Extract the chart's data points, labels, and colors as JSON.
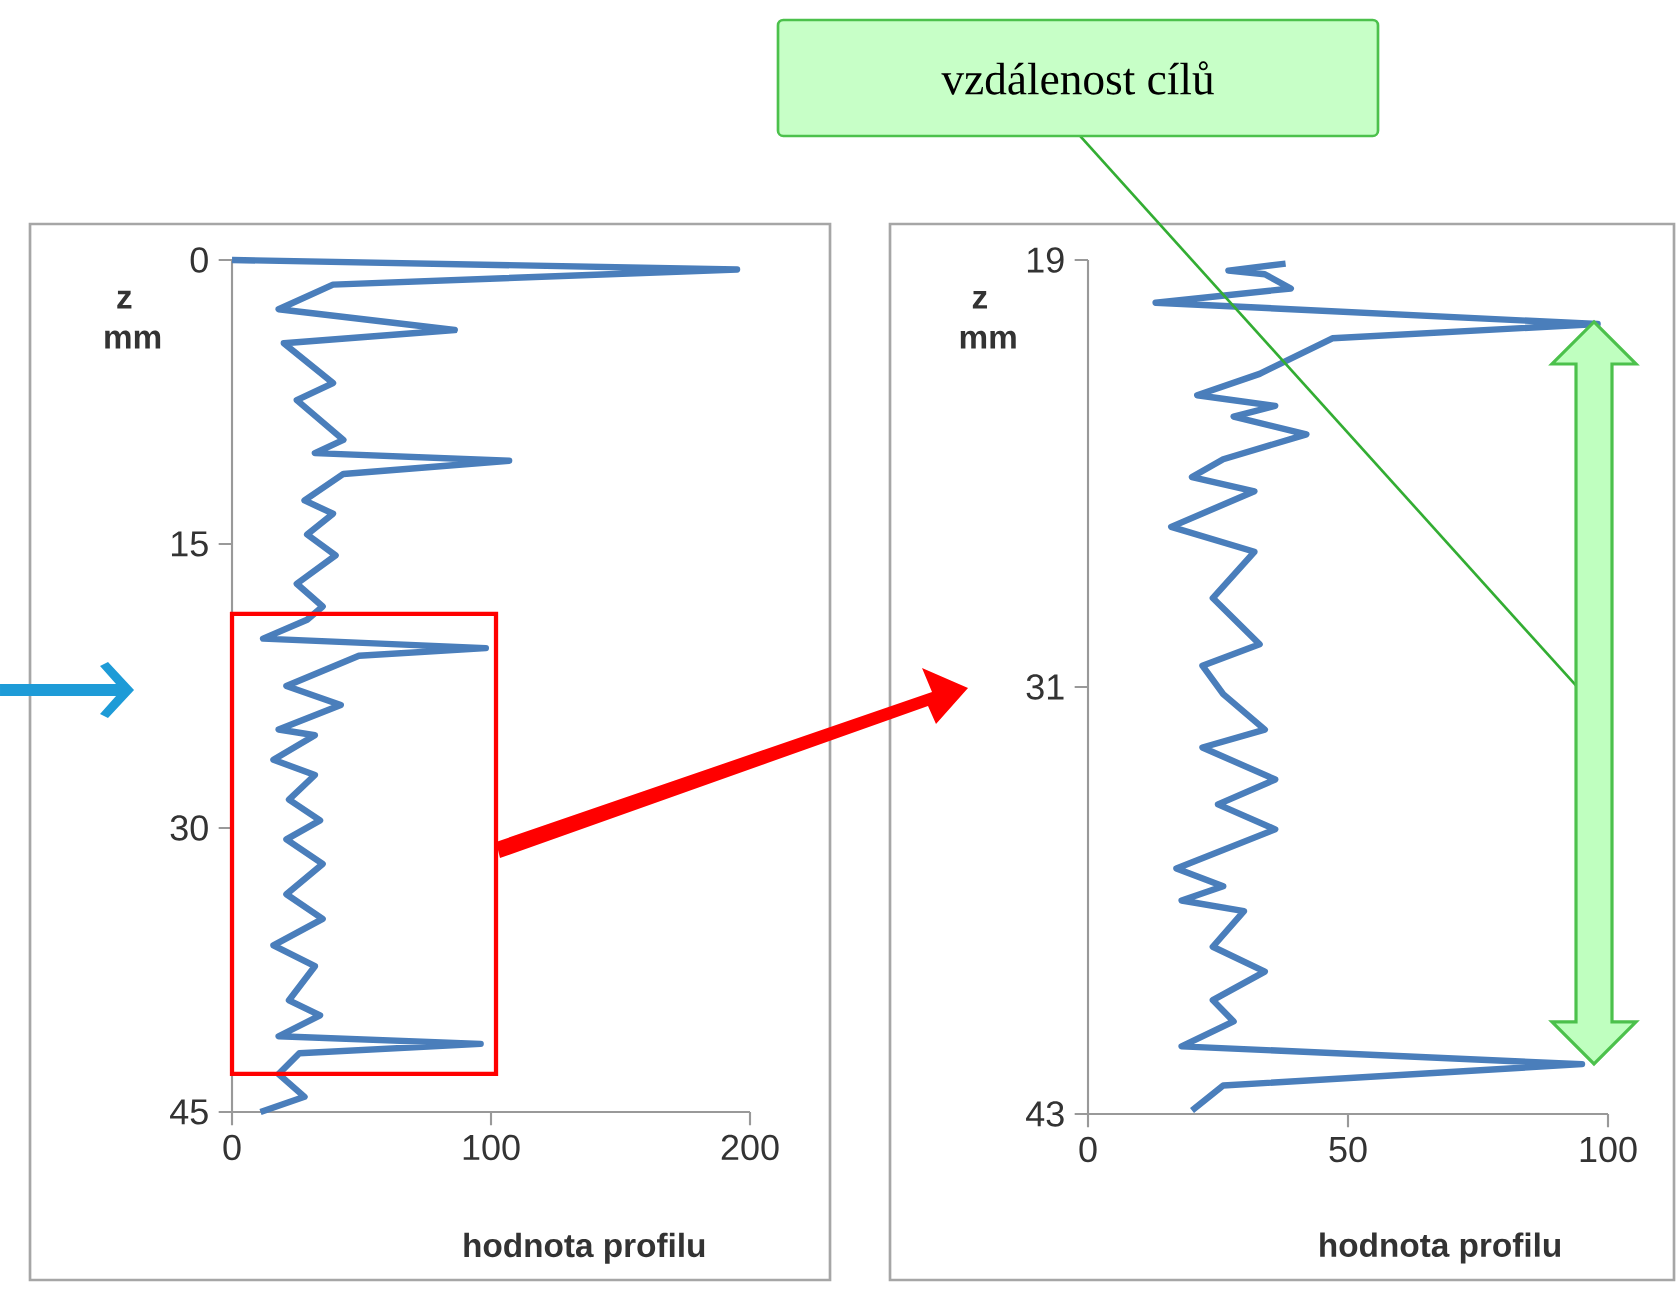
{
  "chart_data": [
    {
      "type": "line",
      "orientation": "horizontal",
      "xlabel": "hodnota profilu",
      "ylabel": "z mm",
      "color": "#4a7ebb",
      "xlim": [
        0,
        200
      ],
      "xticks": [
        0,
        100,
        200
      ],
      "ylim": [
        45,
        0
      ],
      "yticks": [
        0,
        15,
        30,
        45
      ],
      "x": [
        0,
        0.5,
        1.3,
        2.6,
        3.7,
        4.4,
        6.5,
        7.4,
        9.5,
        10.2,
        10.6,
        11.3,
        12.7,
        13.4,
        14.5,
        15.6,
        17.1,
        18.3,
        19.0,
        20.0,
        20.5,
        20.9,
        22.5,
        23.5,
        24.8,
        25.1,
        26.4,
        27.2,
        28.5,
        29.6,
        30.6,
        31.9,
        33.5,
        34.8,
        36.2,
        37.3,
        39.1,
        39.9,
        41.0,
        41.4,
        41.9,
        43.0,
        44.2,
        45
      ],
      "values": [
        0,
        195,
        39,
        18,
        86,
        20,
        39,
        25,
        43,
        32,
        107,
        43,
        28,
        39,
        29,
        40,
        25,
        35,
        29,
        12,
        98,
        49,
        21,
        42,
        18,
        32,
        16,
        32,
        22,
        34,
        21,
        35,
        21,
        35,
        16,
        32,
        22,
        34,
        18,
        96,
        26,
        18,
        28,
        11
      ]
    },
    {
      "type": "line",
      "orientation": "horizontal",
      "xlabel": "hodnota profilu",
      "ylabel": "z mm",
      "color": "#4a7ebb",
      "xlim": [
        0,
        100
      ],
      "xticks": [
        0,
        50,
        100
      ],
      "ylim": [
        43,
        19
      ],
      "yticks": [
        19,
        31,
        43
      ],
      "annotations": [
        "vzdálenost cílů"
      ],
      "x": [
        19.1,
        19.3,
        19.4,
        19.8,
        20.2,
        20.8,
        21.2,
        22.2,
        22.8,
        23.1,
        23.4,
        23.9,
        24.6,
        25.1,
        25.5,
        26.5,
        27.2,
        28.5,
        29.8,
        30.4,
        31.2,
        32.2,
        32.7,
        33.6,
        34.3,
        35.0,
        36.1,
        36.6,
        37.0,
        37.3,
        38.3,
        39.0,
        39.8,
        40.4,
        41.1,
        41.6,
        42.2,
        42.9
      ],
      "values": [
        38,
        27,
        34,
        39,
        13,
        98,
        47,
        33,
        21,
        36,
        28,
        42,
        26,
        20,
        32,
        16,
        32,
        24,
        33,
        22,
        26,
        34,
        22,
        36,
        25,
        36,
        17,
        26,
        18,
        30,
        24,
        34,
        24,
        28,
        18,
        95,
        26,
        20
      ]
    }
  ]
}
